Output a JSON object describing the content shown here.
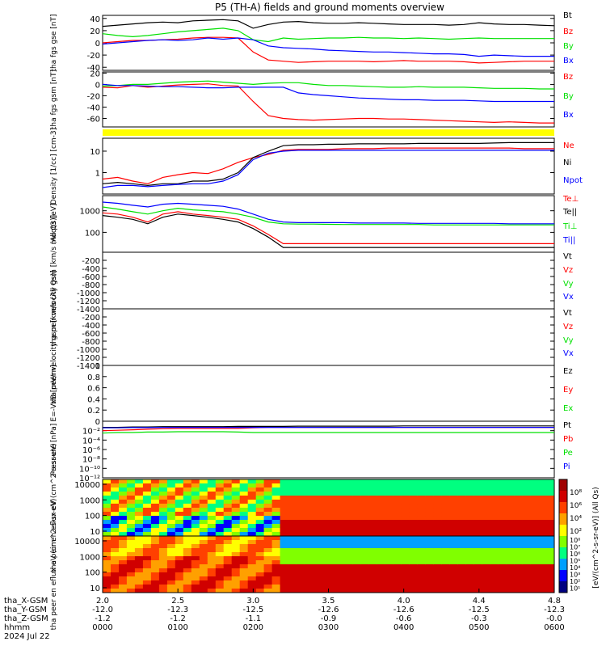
{
  "title": "P5 (TH-A) fields and ground moments overview",
  "colors": {
    "black": "#000000",
    "red": "#ff0000",
    "green": "#00e000",
    "blue": "#0000ff",
    "yellow": "#ffff00"
  },
  "chart_data": [
    {
      "type": "line",
      "id": "fgs_gse",
      "ylabel": "tha fgs gse [nT]",
      "ylim": [
        -45,
        45
      ],
      "ticks": [
        40,
        20,
        0,
        -20,
        -40
      ],
      "legend": [
        "Bt",
        "Bz",
        "By",
        "Bx"
      ],
      "series": [
        {
          "name": "Bt",
          "color": "#000000",
          "values": [
            27,
            29,
            31,
            33,
            34,
            33,
            36,
            37,
            38,
            36,
            24,
            30,
            34,
            35,
            33,
            32,
            32,
            33,
            32,
            31,
            30,
            30,
            30,
            29,
            30,
            33,
            31,
            30,
            30,
            29,
            28
          ]
        },
        {
          "name": "Bz",
          "color": "#ff0000",
          "values": [
            0,
            2,
            4,
            4,
            5,
            6,
            8,
            9,
            9,
            8,
            -15,
            -28,
            -30,
            -32,
            -31,
            -30,
            -30,
            -30,
            -31,
            -30,
            -29,
            -30,
            -30,
            -30,
            -31,
            -33,
            -32,
            -31,
            -30,
            -30,
            -30
          ]
        },
        {
          "name": "By",
          "color": "#00e000",
          "values": [
            15,
            12,
            10,
            12,
            15,
            18,
            20,
            22,
            24,
            20,
            5,
            2,
            8,
            6,
            7,
            8,
            8,
            9,
            8,
            8,
            7,
            8,
            7,
            6,
            7,
            8,
            7,
            7,
            7,
            7,
            7
          ]
        },
        {
          "name": "Bx",
          "color": "#0000ff",
          "values": [
            -2,
            0,
            2,
            4,
            5,
            4,
            5,
            8,
            6,
            8,
            5,
            -5,
            -8,
            -9,
            -10,
            -12,
            -13,
            -14,
            -15,
            -15,
            -16,
            -17,
            -18,
            -18,
            -19,
            -22,
            -20,
            -21,
            -22,
            -22,
            -22
          ]
        }
      ]
    },
    {
      "type": "line",
      "id": "fgs_gsm",
      "ylabel": "tha fgs gsm [nT]",
      "ylim": [
        -75,
        22
      ],
      "ticks": [
        20,
        0,
        -20,
        -40,
        -60
      ],
      "legend": [
        "Bz",
        "By",
        "Bx"
      ],
      "series": [
        {
          "name": "Bz",
          "color": "#ff0000",
          "values": [
            -5,
            -6,
            -2,
            -5,
            -3,
            -1,
            0,
            1,
            -2,
            -3,
            -30,
            -55,
            -60,
            -62,
            -63,
            -62,
            -61,
            -60,
            -60,
            -61,
            -61,
            -62,
            -63,
            -64,
            -65,
            -66,
            -67,
            -66,
            -67,
            -68,
            -68
          ]
        },
        {
          "name": "By",
          "color": "#00e000",
          "values": [
            -3,
            -2,
            0,
            0,
            2,
            4,
            5,
            6,
            4,
            2,
            0,
            2,
            3,
            3,
            0,
            -2,
            -2,
            -3,
            -4,
            -5,
            -5,
            -4,
            -5,
            -5,
            -5,
            -6,
            -7,
            -7,
            -7,
            -8,
            -8
          ]
        },
        {
          "name": "Bx",
          "color": "#0000ff",
          "values": [
            0,
            -2,
            -2,
            -3,
            -4,
            -4,
            -5,
            -6,
            -6,
            -5,
            -5,
            -5,
            -5,
            -15,
            -18,
            -20,
            -22,
            -24,
            -25,
            -26,
            -27,
            -27,
            -28,
            -28,
            -28,
            -29,
            -30,
            -30,
            -30,
            -30,
            -30
          ]
        }
      ]
    },
    {
      "type": "line",
      "id": "density",
      "ylabel": "Density [1/cc] [cm-3]",
      "yscale": "log",
      "ylim": [
        0.1,
        40
      ],
      "ticks": [
        10,
        1
      ],
      "legend": [
        "Ne",
        "Ni",
        "Npot"
      ],
      "series": [
        {
          "name": "Ne",
          "color": "#ff0000",
          "values": [
            0.5,
            0.6,
            0.4,
            0.3,
            0.6,
            0.8,
            1.0,
            0.9,
            1.5,
            3.0,
            5,
            7,
            11,
            12,
            12,
            12,
            13,
            13,
            13,
            14,
            14,
            14,
            14,
            14,
            14,
            14,
            14,
            14,
            13,
            13,
            13
          ]
        },
        {
          "name": "Ni",
          "color": "#000000",
          "values": [
            0.3,
            0.35,
            0.3,
            0.25,
            0.3,
            0.3,
            0.4,
            0.4,
            0.5,
            1.0,
            5,
            10,
            18,
            20,
            20,
            21,
            21,
            22,
            22,
            22,
            22,
            23,
            23,
            23,
            23,
            23,
            24,
            25,
            25,
            25,
            25
          ]
        },
        {
          "name": "Npot",
          "color": "#0000ff",
          "values": [
            0.2,
            0.25,
            0.25,
            0.22,
            0.25,
            0.28,
            0.3,
            0.3,
            0.4,
            0.8,
            4,
            8,
            10,
            11,
            11,
            11,
            11,
            11,
            11,
            11,
            11,
            11,
            11,
            11,
            11,
            11,
            11,
            11,
            11,
            11,
            11
          ]
        }
      ]
    },
    {
      "type": "line",
      "id": "temperature",
      "ylabel": "moqt3 [eV]",
      "yscale": "log",
      "ylim": [
        12,
        5000
      ],
      "ticks": [
        1000,
        100,
        10
      ],
      "legend": [
        "Te⊥",
        "Te||",
        "Ti⊥",
        "Ti||"
      ],
      "series": [
        {
          "name": "Te⊥",
          "color": "#ff0000",
          "values": [
            800,
            700,
            500,
            300,
            700,
            900,
            700,
            600,
            500,
            400,
            200,
            80,
            30,
            30,
            30,
            30,
            30,
            30,
            30,
            30,
            30,
            30,
            30,
            30,
            30,
            30,
            30,
            30,
            30,
            30,
            30
          ]
        },
        {
          "name": "Te||",
          "color": "#000000",
          "values": [
            600,
            500,
            400,
            250,
            500,
            700,
            600,
            500,
            400,
            300,
            150,
            60,
            20,
            20,
            20,
            20,
            20,
            20,
            20,
            20,
            20,
            20,
            20,
            20,
            20,
            20,
            20,
            20,
            20,
            20,
            20
          ]
        },
        {
          "name": "Ti⊥",
          "color": "#00e000",
          "values": [
            1500,
            1200,
            900,
            700,
            1000,
            1300,
            1100,
            1000,
            900,
            700,
            500,
            300,
            250,
            240,
            240,
            235,
            230,
            230,
            230,
            230,
            230,
            230,
            220,
            220,
            220,
            220,
            220,
            220,
            220,
            220,
            220
          ]
        },
        {
          "name": "Ti||",
          "color": "#0000ff",
          "values": [
            2500,
            2200,
            1800,
            1500,
            2000,
            2200,
            2000,
            1800,
            1600,
            1200,
            700,
            400,
            300,
            280,
            280,
            280,
            280,
            270,
            270,
            270,
            270,
            260,
            260,
            260,
            260,
            260,
            260,
            250,
            250,
            250,
            250
          ]
        }
      ]
    },
    {
      "type": "line",
      "id": "peir_velocity",
      "ylabel": "tha peir velocity gsm [km/s (All Qs)]",
      "ylim": [
        -1400,
        0
      ],
      "ticks": [
        -200,
        -400,
        -600,
        -800,
        -1000,
        -1200,
        -1400
      ],
      "legend": [
        "Vt",
        "Vz",
        "Vy",
        "Vx"
      ],
      "series": []
    },
    {
      "type": "line",
      "id": "peer_velocity",
      "ylabel": "tha peer velocity gsm [km/s (All Qs)]",
      "ylim": [
        -1400,
        0
      ],
      "ticks": [
        -200,
        -400,
        -600,
        -800,
        -1000,
        -1200,
        -1400
      ],
      "legend": [
        "Vt",
        "Vz",
        "Vy",
        "Vx"
      ],
      "series": []
    },
    {
      "type": "line",
      "id": "efield",
      "ylabel": "E=-VxB [mV/m]",
      "ylim": [
        0,
        1
      ],
      "ticks": [
        1.0,
        0.8,
        0.6,
        0.4,
        0.2,
        0.0
      ],
      "legend": [
        "Ez",
        "Ey",
        "Ex"
      ],
      "series": []
    },
    {
      "type": "line",
      "id": "pressure",
      "ylabel": "Pressure [nPa]",
      "yscale": "log",
      "ylim": [
        1e-12,
        1
      ],
      "ticks": [
        "10⁻²",
        "10⁻⁴",
        "10⁻⁶",
        "10⁻⁸",
        "10⁻¹⁰",
        "10⁻¹²"
      ],
      "legend": [
        "Pt",
        "Pb",
        "Pe",
        "Pi"
      ],
      "series": [
        {
          "name": "Pt",
          "color": "#000000",
          "values": [
            0.05,
            0.05,
            0.06,
            0.06,
            0.07,
            0.07,
            0.07,
            0.07,
            0.07,
            0.08,
            0.08,
            0.08,
            0.08,
            0.09,
            0.09,
            0.09,
            0.09,
            0.09,
            0.09,
            0.09,
            0.1,
            0.1,
            0.1,
            0.1,
            0.1,
            0.1,
            0.1,
            0.1,
            0.1,
            0.1,
            0.1
          ]
        },
        {
          "name": "Pb",
          "color": "#ff0000",
          "values": [
            0.01,
            0.012,
            0.015,
            0.02,
            0.025,
            0.03,
            0.03,
            0.03,
            0.03,
            0.03,
            0.04,
            0.05,
            0.05,
            0.05,
            0.05,
            0.05,
            0.05,
            0.05,
            0.05,
            0.05,
            0.05,
            0.05,
            0.05,
            0.05,
            0.05,
            0.05,
            0.05,
            0.05,
            0.05,
            0.05,
            0.05
          ]
        },
        {
          "name": "Pe",
          "color": "#00e000",
          "values": [
            0.003,
            0.004,
            0.004,
            0.005,
            0.005,
            0.006,
            0.006,
            0.006,
            0.006,
            0.005,
            0.004,
            0.004,
            0.004,
            0.004,
            0.004,
            0.004,
            0.004,
            0.004,
            0.004,
            0.004,
            0.004,
            0.004,
            0.004,
            0.004,
            0.004,
            0.004,
            0.004,
            0.004,
            0.004,
            0.004,
            0.004
          ]
        },
        {
          "name": "Pi",
          "color": "#0000ff",
          "values": [
            0.04,
            0.04,
            0.045,
            0.045,
            0.05,
            0.05,
            0.05,
            0.05,
            0.05,
            0.05,
            0.05,
            0.05,
            0.05,
            0.05,
            0.05,
            0.05,
            0.05,
            0.05,
            0.05,
            0.05,
            0.05,
            0.05,
            0.05,
            0.05,
            0.05,
            0.05,
            0.05,
            0.05,
            0.05,
            0.05,
            0.05
          ]
        }
      ]
    },
    {
      "type": "heatmap",
      "id": "peir_spec",
      "ylabel": "tha peir en eflux eV (cm^2-s-sr-eV)",
      "ticks": [
        "10000",
        "1000",
        "100",
        "10"
      ]
    },
    {
      "type": "heatmap",
      "id": "peer_spec",
      "ylabel": "tha peer en eflux eV (cm^2-s-sr-eV)",
      "ticks": [
        "10000",
        "1000",
        "100",
        "10"
      ]
    }
  ],
  "colorbar": {
    "label": "[eV/(cm^2-s-sr-eV)] (All Qs)",
    "ticks_upper": [
      "10⁸",
      "10⁶",
      "10⁴",
      "10²"
    ],
    "ticks_lower": [
      "10⁸",
      "10⁷",
      "10⁶",
      "10⁵",
      "10⁴",
      "10³",
      "10²",
      "10¹"
    ]
  },
  "x_axis": {
    "rows": [
      {
        "label": "tha_X-GSM",
        "values": [
          "2.0",
          "2.5",
          "3.0",
          "3.5",
          "4.0",
          "4.4",
          "4.8"
        ]
      },
      {
        "label": "tha_Y-GSM",
        "values": [
          "-12.0",
          "-12.3",
          "-12.5",
          "-12.6",
          "-12.6",
          "-12.5",
          "-12.3"
        ]
      },
      {
        "label": "tha_Z-GSM",
        "values": [
          "-1.2",
          "-1.2",
          "-1.1",
          "-0.9",
          "-0.6",
          "-0.3",
          "-0.0"
        ]
      },
      {
        "label": "hhmm",
        "values": [
          "0000",
          "0100",
          "0200",
          "0300",
          "0400",
          "0500",
          "0600"
        ]
      }
    ],
    "date": "2024 Jul 22"
  }
}
